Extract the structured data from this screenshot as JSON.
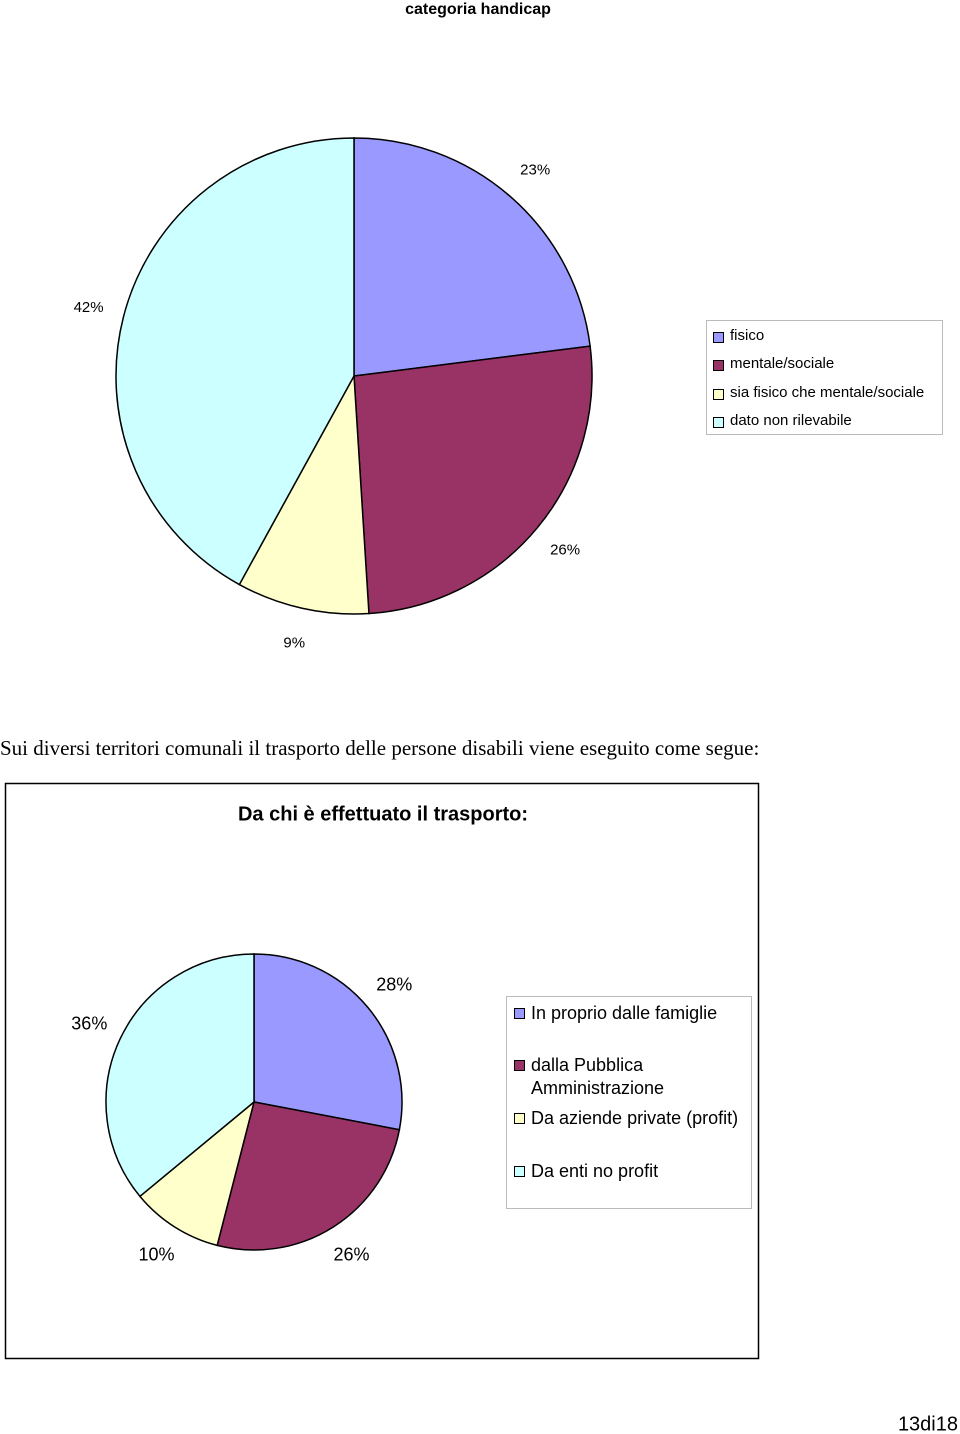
{
  "chart_data": [
    {
      "type": "pie",
      "title": "categoria handicap",
      "categories": [
        "fisico",
        "mentale/sociale",
        "sia fisico che mentale/sociale",
        "dato non rilevabile"
      ],
      "values": [
        23,
        26,
        9,
        42
      ],
      "value_labels": [
        "23%",
        "26%",
        "9%",
        "42%"
      ],
      "colors": [
        "#9999ff",
        "#993366",
        "#ffffcc",
        "#ccffff"
      ]
    },
    {
      "type": "pie",
      "title": "Da chi è effettuato il trasporto:",
      "categories": [
        "In proprio dalle famiglie",
        "dalla Pubblica Amministrazione",
        "Da aziende private (profit)",
        "Da enti no profit"
      ],
      "values": [
        28,
        26,
        10,
        36
      ],
      "value_labels": [
        "28%",
        "26%",
        "10%",
        "36%"
      ],
      "colors": [
        "#9999ff",
        "#993366",
        "#ffffcc",
        "#ccffff"
      ]
    }
  ],
  "body_text": "Sui diversi territori comunali il trasporto delle persone disabili  viene eseguito come segue:",
  "page_number": "13di18"
}
